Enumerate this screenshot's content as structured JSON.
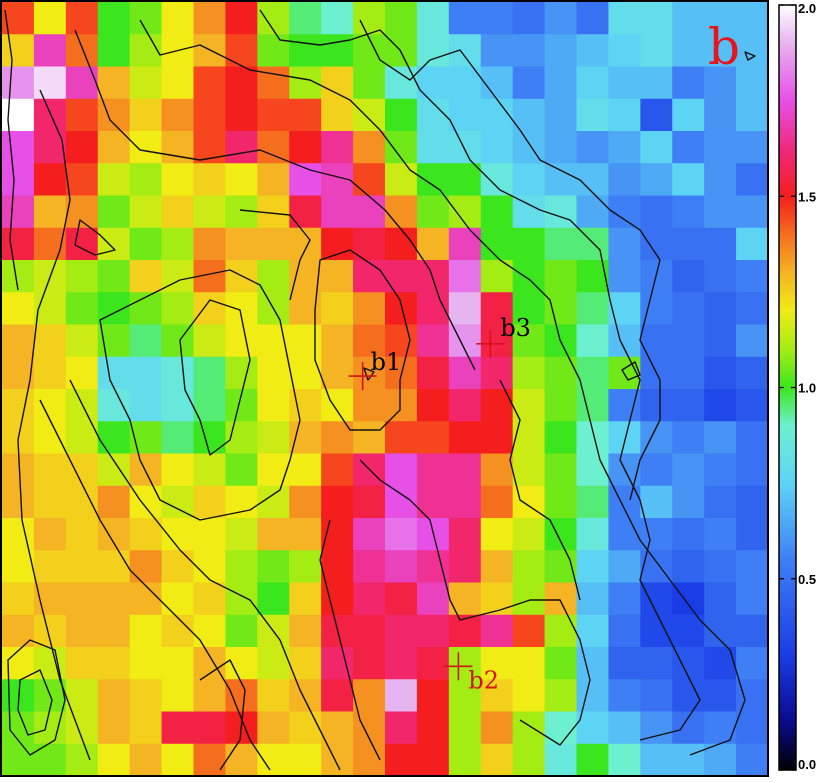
{
  "panel_label": "b",
  "colors": {
    "panel_letter": "#e8141c",
    "marker_b1": "#d1141c",
    "marker_b2": "#d1141c",
    "marker_b3": "#d1141c",
    "label_b1": "#000000",
    "label_b2": "#d1141c",
    "label_b3": "#000000",
    "contour": "#111111",
    "frame": "#000000"
  },
  "chart_data": {
    "type": "heatmap",
    "title": "",
    "xlabel": "",
    "ylabel": "",
    "colorbar": {
      "min": 0.0,
      "max": 2.0,
      "ticks": [
        0.0,
        0.5,
        1.0,
        1.5,
        2.0
      ],
      "tick_labels": [
        "0.0",
        "0.5",
        "1.0",
        "1.5",
        "2.0"
      ],
      "colormap": [
        {
          "v": 0.0,
          "c": "#000000"
        },
        {
          "v": 0.125,
          "c": "#0a0a8c"
        },
        {
          "v": 0.3,
          "c": "#1a3ce6"
        },
        {
          "v": 0.55,
          "c": "#3f7ff5"
        },
        {
          "v": 0.75,
          "c": "#5ed4f5"
        },
        {
          "v": 0.9,
          "c": "#6df0d0"
        },
        {
          "v": 1.0,
          "c": "#3ce61e"
        },
        {
          "v": 1.1,
          "c": "#a5ec14"
        },
        {
          "v": 1.2,
          "c": "#f0ec14"
        },
        {
          "v": 1.3,
          "c": "#f5b423"
        },
        {
          "v": 1.4,
          "c": "#f56e1e"
        },
        {
          "v": 1.5,
          "c": "#f51e1e"
        },
        {
          "v": 1.62,
          "c": "#f0287a"
        },
        {
          "v": 1.75,
          "c": "#e650e6"
        },
        {
          "v": 1.9,
          "c": "#e6b4f0"
        },
        {
          "v": 2.0,
          "c": "#ffffff"
        }
      ]
    },
    "grid": {
      "rows": 24,
      "cols": 24
    },
    "values": [
      [
        1.45,
        1.2,
        1.45,
        1.0,
        1.05,
        1.2,
        1.35,
        1.5,
        1.1,
        0.95,
        0.9,
        1.1,
        1.05,
        0.85,
        0.55,
        0.55,
        0.5,
        0.6,
        0.5,
        0.8,
        0.8,
        0.7,
        0.7,
        0.7
      ],
      [
        1.25,
        1.7,
        1.4,
        1.0,
        1.1,
        1.2,
        1.3,
        1.45,
        1.05,
        1.0,
        1.0,
        1.05,
        1.05,
        0.85,
        0.8,
        0.6,
        0.6,
        0.65,
        0.7,
        0.75,
        0.8,
        0.7,
        0.7,
        0.7
      ],
      [
        1.85,
        1.95,
        1.7,
        1.3,
        1.15,
        1.2,
        1.45,
        1.5,
        1.4,
        1.1,
        1.25,
        1.05,
        0.85,
        0.75,
        0.75,
        0.7,
        0.55,
        0.65,
        0.75,
        0.7,
        0.7,
        0.55,
        0.6,
        0.7
      ],
      [
        2.0,
        1.6,
        1.45,
        1.35,
        1.25,
        1.35,
        1.45,
        1.5,
        1.45,
        1.45,
        1.25,
        1.15,
        1.0,
        0.8,
        0.75,
        0.75,
        0.7,
        0.65,
        0.8,
        0.75,
        0.4,
        0.75,
        0.6,
        0.7
      ],
      [
        1.75,
        1.6,
        1.5,
        1.3,
        1.2,
        1.3,
        1.45,
        1.6,
        1.4,
        1.5,
        1.65,
        1.35,
        1.05,
        0.8,
        0.8,
        0.75,
        0.7,
        0.65,
        0.6,
        0.65,
        0.75,
        0.55,
        0.6,
        0.6
      ],
      [
        1.75,
        1.5,
        1.45,
        1.15,
        1.1,
        1.2,
        1.25,
        1.2,
        1.3,
        1.75,
        1.7,
        1.45,
        1.15,
        1.0,
        1.0,
        0.85,
        0.75,
        0.7,
        0.7,
        0.6,
        0.65,
        0.75,
        0.6,
        0.5
      ],
      [
        1.7,
        1.3,
        1.35,
        1.05,
        1.15,
        1.25,
        1.15,
        1.1,
        1.25,
        1.55,
        1.7,
        1.7,
        1.35,
        1.05,
        1.1,
        1.0,
        0.8,
        0.85,
        0.65,
        0.55,
        0.5,
        0.55,
        0.6,
        0.6
      ],
      [
        1.55,
        1.4,
        1.55,
        1.15,
        1.05,
        1.1,
        1.35,
        1.3,
        1.3,
        1.3,
        1.5,
        1.55,
        1.5,
        1.3,
        1.7,
        1.0,
        1.0,
        0.95,
        0.95,
        0.6,
        0.5,
        0.5,
        0.5,
        0.75
      ],
      [
        1.1,
        1.15,
        1.1,
        1.05,
        1.25,
        1.15,
        1.4,
        1.25,
        1.1,
        1.3,
        1.3,
        1.6,
        1.6,
        1.6,
        1.8,
        1.1,
        1.0,
        1.05,
        1.0,
        0.6,
        0.55,
        0.45,
        0.5,
        0.55
      ],
      [
        1.2,
        1.15,
        1.05,
        1.0,
        1.05,
        1.1,
        1.25,
        1.2,
        1.1,
        1.3,
        1.25,
        1.35,
        1.5,
        1.6,
        1.9,
        1.55,
        1.0,
        1.05,
        0.95,
        0.75,
        0.55,
        0.5,
        0.45,
        0.5
      ],
      [
        1.3,
        1.25,
        1.15,
        1.05,
        0.95,
        1.05,
        1.15,
        1.2,
        1.2,
        1.2,
        1.3,
        1.4,
        1.45,
        1.65,
        1.85,
        1.55,
        1.05,
        1.0,
        0.9,
        0.7,
        0.5,
        0.5,
        0.45,
        0.6
      ],
      [
        1.3,
        1.25,
        1.2,
        0.8,
        0.8,
        0.85,
        0.95,
        1.1,
        1.2,
        1.2,
        1.3,
        1.35,
        1.4,
        1.55,
        1.7,
        1.6,
        1.1,
        1.05,
        0.95,
        1.05,
        0.5,
        0.5,
        0.4,
        0.45
      ],
      [
        1.25,
        1.2,
        1.15,
        0.85,
        0.8,
        0.85,
        0.95,
        1.05,
        1.2,
        1.25,
        1.2,
        1.35,
        1.35,
        1.5,
        1.6,
        1.5,
        1.15,
        1.05,
        0.95,
        0.55,
        0.45,
        0.45,
        0.35,
        0.4
      ],
      [
        1.25,
        1.2,
        1.15,
        1.0,
        1.05,
        0.95,
        1.0,
        1.1,
        1.15,
        1.3,
        1.35,
        1.3,
        1.45,
        1.45,
        1.5,
        1.5,
        1.15,
        1.0,
        0.9,
        0.75,
        0.6,
        0.55,
        0.6,
        0.5
      ],
      [
        1.3,
        1.25,
        1.25,
        1.15,
        1.3,
        1.2,
        1.15,
        1.05,
        1.2,
        1.2,
        1.45,
        1.6,
        1.75,
        1.65,
        1.65,
        1.35,
        1.15,
        1.05,
        0.9,
        0.6,
        0.55,
        0.6,
        0.55,
        0.5
      ],
      [
        1.3,
        1.25,
        1.25,
        1.35,
        1.2,
        1.15,
        1.25,
        1.2,
        1.15,
        1.35,
        1.5,
        1.55,
        1.75,
        1.65,
        1.65,
        1.4,
        1.2,
        1.05,
        0.95,
        0.55,
        0.7,
        0.6,
        0.5,
        0.45
      ],
      [
        1.2,
        1.3,
        1.25,
        1.3,
        1.25,
        1.2,
        1.2,
        1.15,
        1.3,
        1.3,
        1.5,
        1.7,
        1.8,
        1.75,
        1.6,
        1.2,
        1.15,
        1.0,
        0.85,
        0.55,
        0.55,
        0.5,
        0.55,
        0.45
      ],
      [
        1.2,
        1.25,
        1.25,
        1.25,
        1.35,
        1.25,
        1.2,
        1.1,
        1.05,
        1.1,
        1.5,
        1.65,
        1.7,
        1.65,
        1.6,
        1.3,
        1.1,
        1.05,
        0.75,
        0.65,
        0.5,
        0.45,
        0.5,
        0.55
      ],
      [
        1.25,
        1.3,
        1.3,
        1.3,
        1.3,
        1.2,
        1.25,
        1.1,
        1.0,
        1.25,
        1.5,
        1.6,
        1.55,
        1.7,
        1.3,
        1.25,
        1.1,
        1.3,
        0.7,
        0.55,
        0.35,
        0.3,
        0.45,
        0.55
      ],
      [
        1.3,
        1.25,
        1.3,
        1.3,
        1.2,
        1.25,
        1.2,
        1.05,
        1.15,
        1.3,
        1.55,
        1.55,
        1.6,
        1.6,
        1.55,
        1.65,
        1.45,
        1.1,
        0.75,
        0.5,
        0.35,
        0.35,
        0.45,
        0.45
      ],
      [
        1.2,
        1.15,
        1.25,
        1.25,
        1.2,
        1.2,
        1.3,
        1.2,
        1.15,
        1.25,
        1.6,
        1.55,
        1.6,
        1.55,
        1.1,
        1.2,
        1.2,
        1.05,
        0.7,
        0.45,
        0.45,
        0.4,
        0.35,
        0.55
      ],
      [
        1.0,
        1.05,
        1.15,
        1.3,
        1.25,
        1.2,
        1.3,
        1.4,
        1.25,
        1.3,
        1.55,
        1.35,
        1.9,
        1.5,
        1.1,
        1.25,
        1.2,
        1.1,
        0.7,
        0.55,
        0.5,
        0.4,
        0.4,
        0.5
      ],
      [
        1.05,
        1.1,
        1.15,
        1.3,
        1.25,
        1.55,
        1.55,
        1.5,
        1.3,
        1.25,
        1.3,
        1.35,
        1.6,
        1.5,
        1.1,
        1.35,
        1.1,
        0.9,
        0.75,
        0.7,
        0.6,
        0.5,
        0.55,
        0.5
      ],
      [
        1.05,
        1.05,
        1.1,
        1.2,
        1.3,
        1.2,
        1.4,
        1.3,
        1.2,
        1.2,
        1.3,
        1.35,
        1.5,
        1.5,
        1.1,
        1.25,
        1.1,
        0.85,
        1.0,
        0.9,
        0.7,
        0.7,
        0.65,
        0.55
      ]
    ],
    "markers": [
      {
        "id": "b1",
        "label": "b1",
        "col": 11.3,
        "row": 11.6
      },
      {
        "id": "b2",
        "label": "b2",
        "col": 14.3,
        "row": 20.6
      },
      {
        "id": "b3",
        "label": "b3",
        "col": 15.3,
        "row": 10.6
      }
    ]
  }
}
